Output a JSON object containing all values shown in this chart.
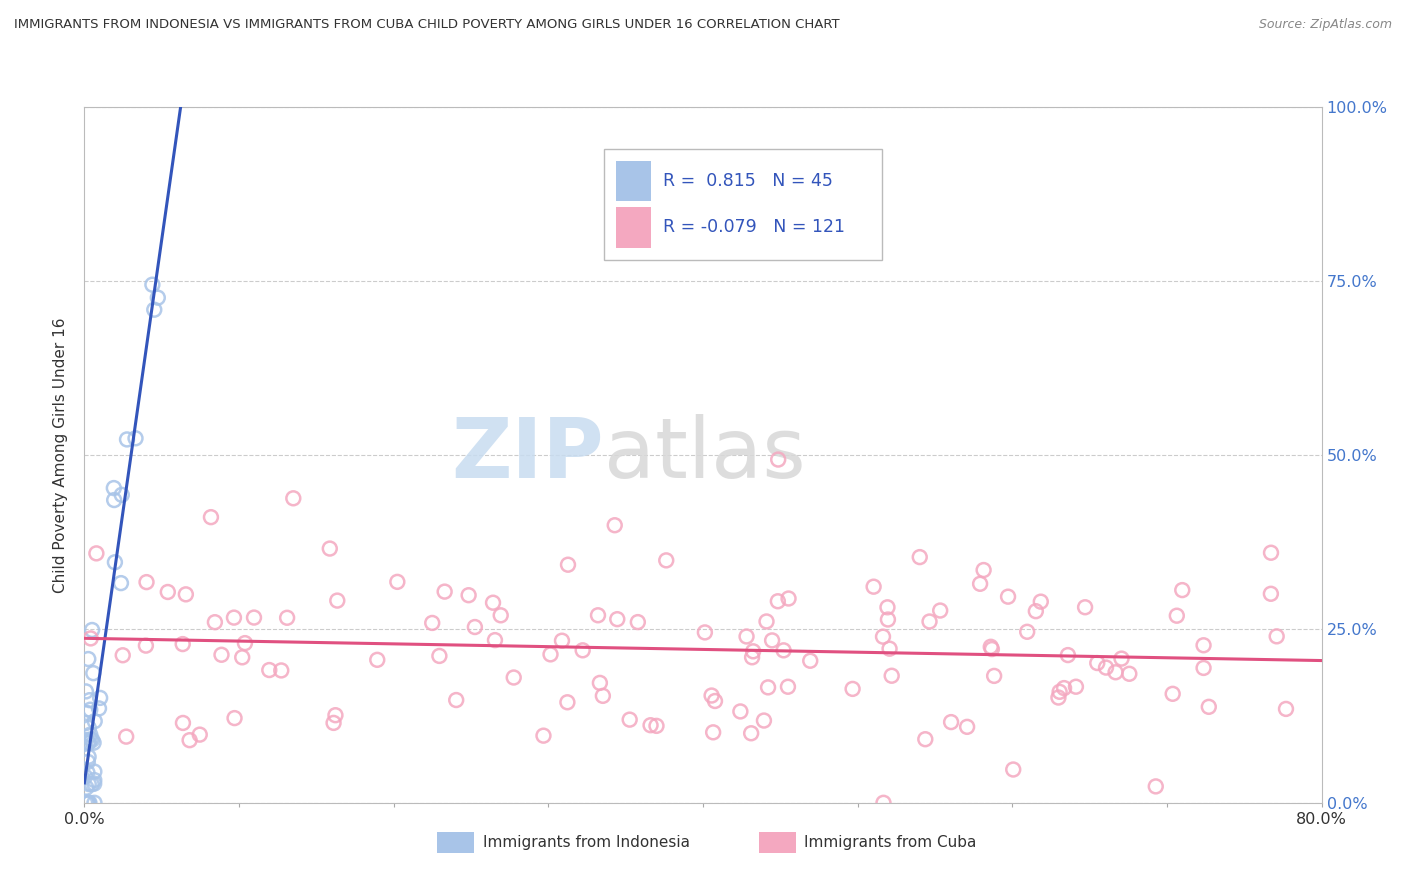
{
  "title": "IMMIGRANTS FROM INDONESIA VS IMMIGRANTS FROM CUBA CHILD POVERTY AMONG GIRLS UNDER 16 CORRELATION CHART",
  "source": "Source: ZipAtlas.com",
  "ylabel": "Child Poverty Among Girls Under 16",
  "r_indonesia": 0.815,
  "n_indonesia": 45,
  "r_cuba": -0.079,
  "n_cuba": 121,
  "legend_label_1": "Immigrants from Indonesia",
  "legend_label_2": "Immigrants from Cuba",
  "color_indonesia": "#A8C4E8",
  "color_cuba": "#F4A8C0",
  "line_color_indonesia": "#3355BB",
  "line_color_cuba": "#E05080",
  "watermark_zip": "ZIP",
  "watermark_atlas": "atlas",
  "xlim": [
    0.0,
    0.8
  ],
  "ylim": [
    0.0,
    1.0
  ],
  "ytick_vals": [
    0.0,
    0.25,
    0.5,
    0.75,
    1.0
  ],
  "ytick_labels": [
    "0.0%",
    "25.0%",
    "50.0%",
    "75.0%",
    "100.0%"
  ],
  "xtick_vals": [
    0.0,
    0.1,
    0.2,
    0.3,
    0.4,
    0.5,
    0.6,
    0.7,
    0.8
  ],
  "xtick_labels": [
    "0.0%",
    "",
    "",
    "",
    "",
    "",
    "",
    "",
    "80.0%"
  ]
}
